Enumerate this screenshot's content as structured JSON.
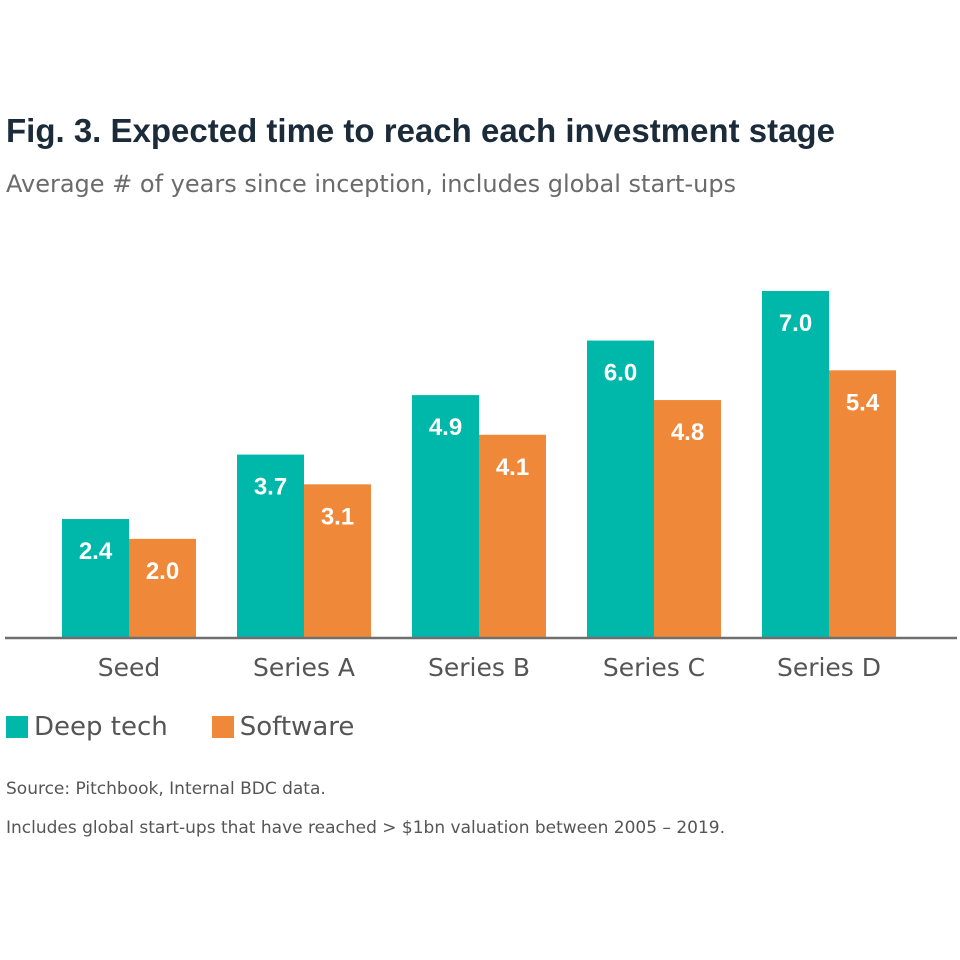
{
  "title": "Fig. 3. Expected time to reach each investment stage",
  "subtitle": "Average # of years since inception, includes global start-ups",
  "source": "Source: Pitchbook, Internal BDC data.",
  "note": "Includes global start-ups that have reached > $1bn valuation between 2005 – 2019.",
  "chart_data": {
    "type": "bar",
    "categories": [
      "Seed",
      "Series A",
      "Series B",
      "Series C",
      "Series D"
    ],
    "series": [
      {
        "name": "Deep tech",
        "values": [
          2.4,
          3.7,
          4.9,
          6.0,
          7.0
        ],
        "color": "#00b8a9"
      },
      {
        "name": "Software",
        "values": [
          2.0,
          3.1,
          4.1,
          4.8,
          5.4
        ],
        "color": "#f0883a"
      }
    ],
    "data_labels": [
      [
        "2.4",
        "3.7",
        "4.9",
        "6.0",
        "7.0"
      ],
      [
        "2.0",
        "3.1",
        "4.1",
        "4.8",
        "5.4"
      ]
    ],
    "ylim": [
      0,
      7.0
    ],
    "grid": false,
    "legend_position": "bottom-left"
  }
}
